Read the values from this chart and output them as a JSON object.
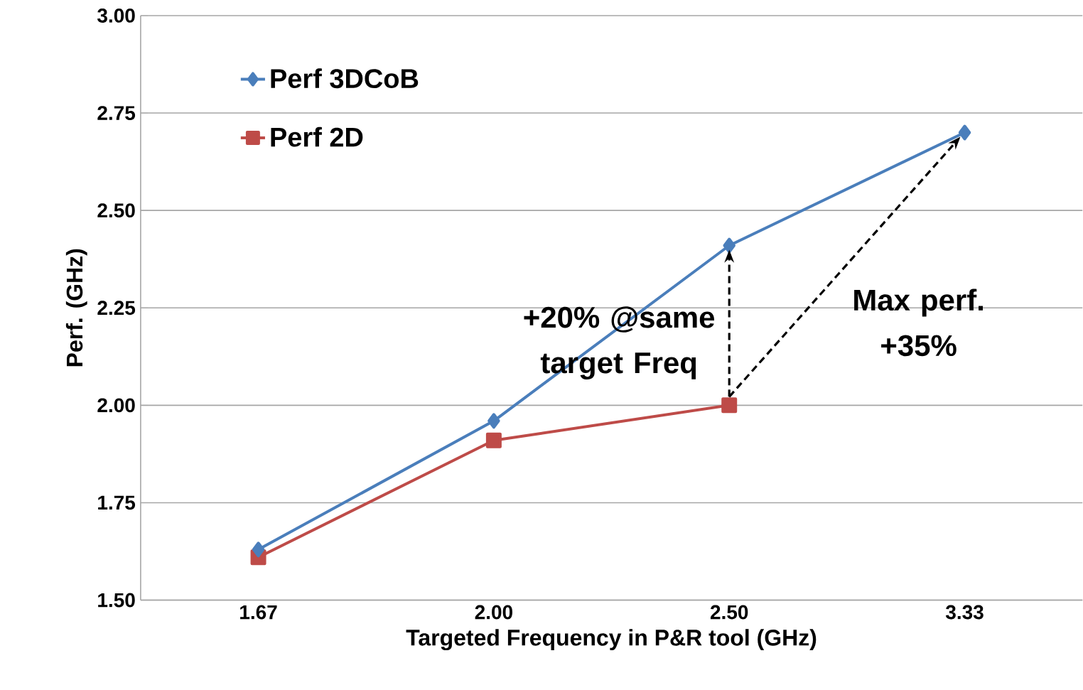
{
  "chart_data": {
    "type": "line",
    "xlabel": "Targeted Frequency in P&R tool (GHz)",
    "ylabel": "Perf.  (GHz)",
    "categories": [
      "1.67",
      "2.00",
      "2.50",
      "3.33"
    ],
    "series": [
      {
        "name": "Perf 3DCoB",
        "color": "#4a7ebb",
        "marker": "diamond",
        "values": [
          1.63,
          1.96,
          2.41,
          2.7
        ]
      },
      {
        "name": "Perf 2D",
        "color": "#be4b48",
        "marker": "square",
        "values": [
          1.61,
          1.91,
          2.0,
          null
        ]
      }
    ],
    "ylim": [
      1.5,
      3.0
    ],
    "yticks": [
      {
        "value": 1.5,
        "label": "1.50"
      },
      {
        "value": 1.75,
        "label": "1.75"
      },
      {
        "value": 2.0,
        "label": "2.00"
      },
      {
        "value": 2.25,
        "label": "2.25"
      },
      {
        "value": 2.5,
        "label": "2.50"
      },
      {
        "value": 2.75,
        "label": "2.75"
      },
      {
        "value": 3.0,
        "label": "3.00"
      }
    ],
    "grid": "y",
    "legend": "top left",
    "line_style": "solid",
    "annotations": [
      {
        "text": "+20% @same target Freq",
        "x": "2.50",
        "y": 2.41
      },
      "Max perf. +35%"
    ]
  }
}
